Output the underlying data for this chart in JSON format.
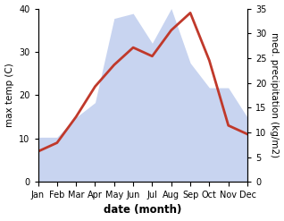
{
  "months": [
    "Jan",
    "Feb",
    "Mar",
    "Apr",
    "May",
    "Jun",
    "Jul",
    "Aug",
    "Sep",
    "Oct",
    "Nov",
    "Dec"
  ],
  "temperature": [
    7,
    9,
    15,
    22,
    27,
    31,
    29,
    35,
    39,
    28,
    13,
    11
  ],
  "precipitation": [
    9,
    9,
    13,
    16,
    33,
    34,
    28,
    35,
    24,
    19,
    19,
    13
  ],
  "temp_color": "#c0392b",
  "precip_color_fill": "#c8d4f0",
  "ylim_temp": [
    0,
    40
  ],
  "ylim_precip": [
    0,
    35
  ],
  "ylabel_left": "max temp (C)",
  "ylabel_right": "med. precipitation (kg/m2)",
  "xlabel": "date (month)",
  "temp_yticks": [
    0,
    10,
    20,
    30,
    40
  ],
  "precip_yticks": [
    0,
    5,
    10,
    15,
    20,
    25,
    30,
    35
  ],
  "line_width": 2.0,
  "font_size_tick": 7,
  "font_size_ylabel": 7.5,
  "font_size_xlabel": 8.5
}
